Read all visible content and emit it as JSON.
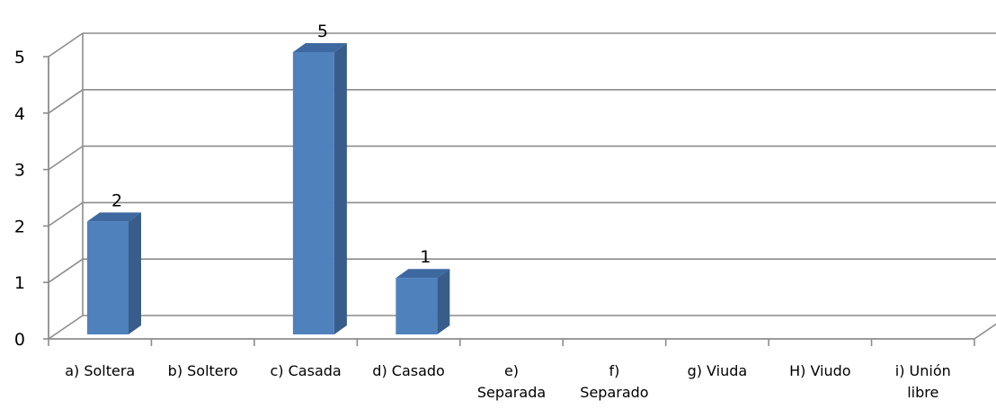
{
  "chart_data": {
    "type": "bar",
    "style": "3d-column",
    "categories": [
      [
        "a) Soltera"
      ],
      [
        "b) Soltero"
      ],
      [
        "c) Casada"
      ],
      [
        "d) Casado"
      ],
      [
        "e)",
        "Separada"
      ],
      [
        "f)",
        "Separado"
      ],
      [
        "g) Viuda"
      ],
      [
        "H) Viudo"
      ],
      [
        "i) Unión",
        "libre"
      ]
    ],
    "values": [
      2,
      0,
      5,
      1,
      0,
      0,
      0,
      0,
      0
    ],
    "data_labels": [
      "2",
      "",
      "5",
      "1",
      "",
      "",
      "",
      "",
      ""
    ],
    "yticks": [
      "0",
      "1",
      "2",
      "3",
      "4",
      "5"
    ],
    "ylim": [
      0,
      5
    ],
    "grid": true,
    "legend": "none",
    "title": "",
    "xlabel": "",
    "ylabel": "",
    "colors": {
      "bar_front": "#4f81bd",
      "bar_side": "#385d8a",
      "bar_top": "#3e68a0",
      "grid": "#8c8c8c",
      "axis": "#8c8c8c"
    }
  }
}
